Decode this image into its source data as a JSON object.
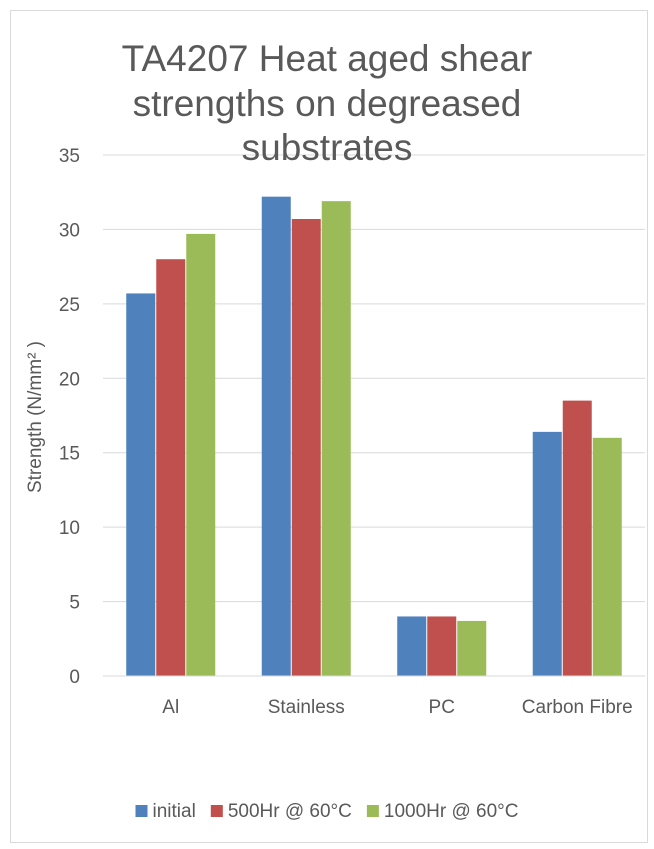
{
  "chart_data": {
    "type": "bar",
    "title_lines": [
      "TA4207 Heat aged shear",
      "strengths on degreased",
      "substrates"
    ],
    "ylabel": "Strength (N/mm² )",
    "xlabel": "",
    "categories": [
      "Al",
      "Stainless",
      "PC",
      "Carbon Fibre"
    ],
    "ylim": [
      0,
      35
    ],
    "yticks": [
      "0",
      "5",
      "10",
      "15",
      "20",
      "25",
      "30",
      "35"
    ],
    "grid": true,
    "legend_position": "bottom",
    "series": [
      {
        "name": "initial",
        "color": "#4f81bd",
        "values": [
          25.7,
          32.2,
          4.0,
          16.4
        ]
      },
      {
        "name": "500Hr @ 60°C",
        "color": "#c0504d",
        "values": [
          28.0,
          30.7,
          4.0,
          18.5
        ]
      },
      {
        "name": "1000Hr @ 60°C",
        "color": "#9bbb59",
        "values": [
          29.7,
          31.9,
          3.7,
          16.0
        ]
      }
    ]
  }
}
